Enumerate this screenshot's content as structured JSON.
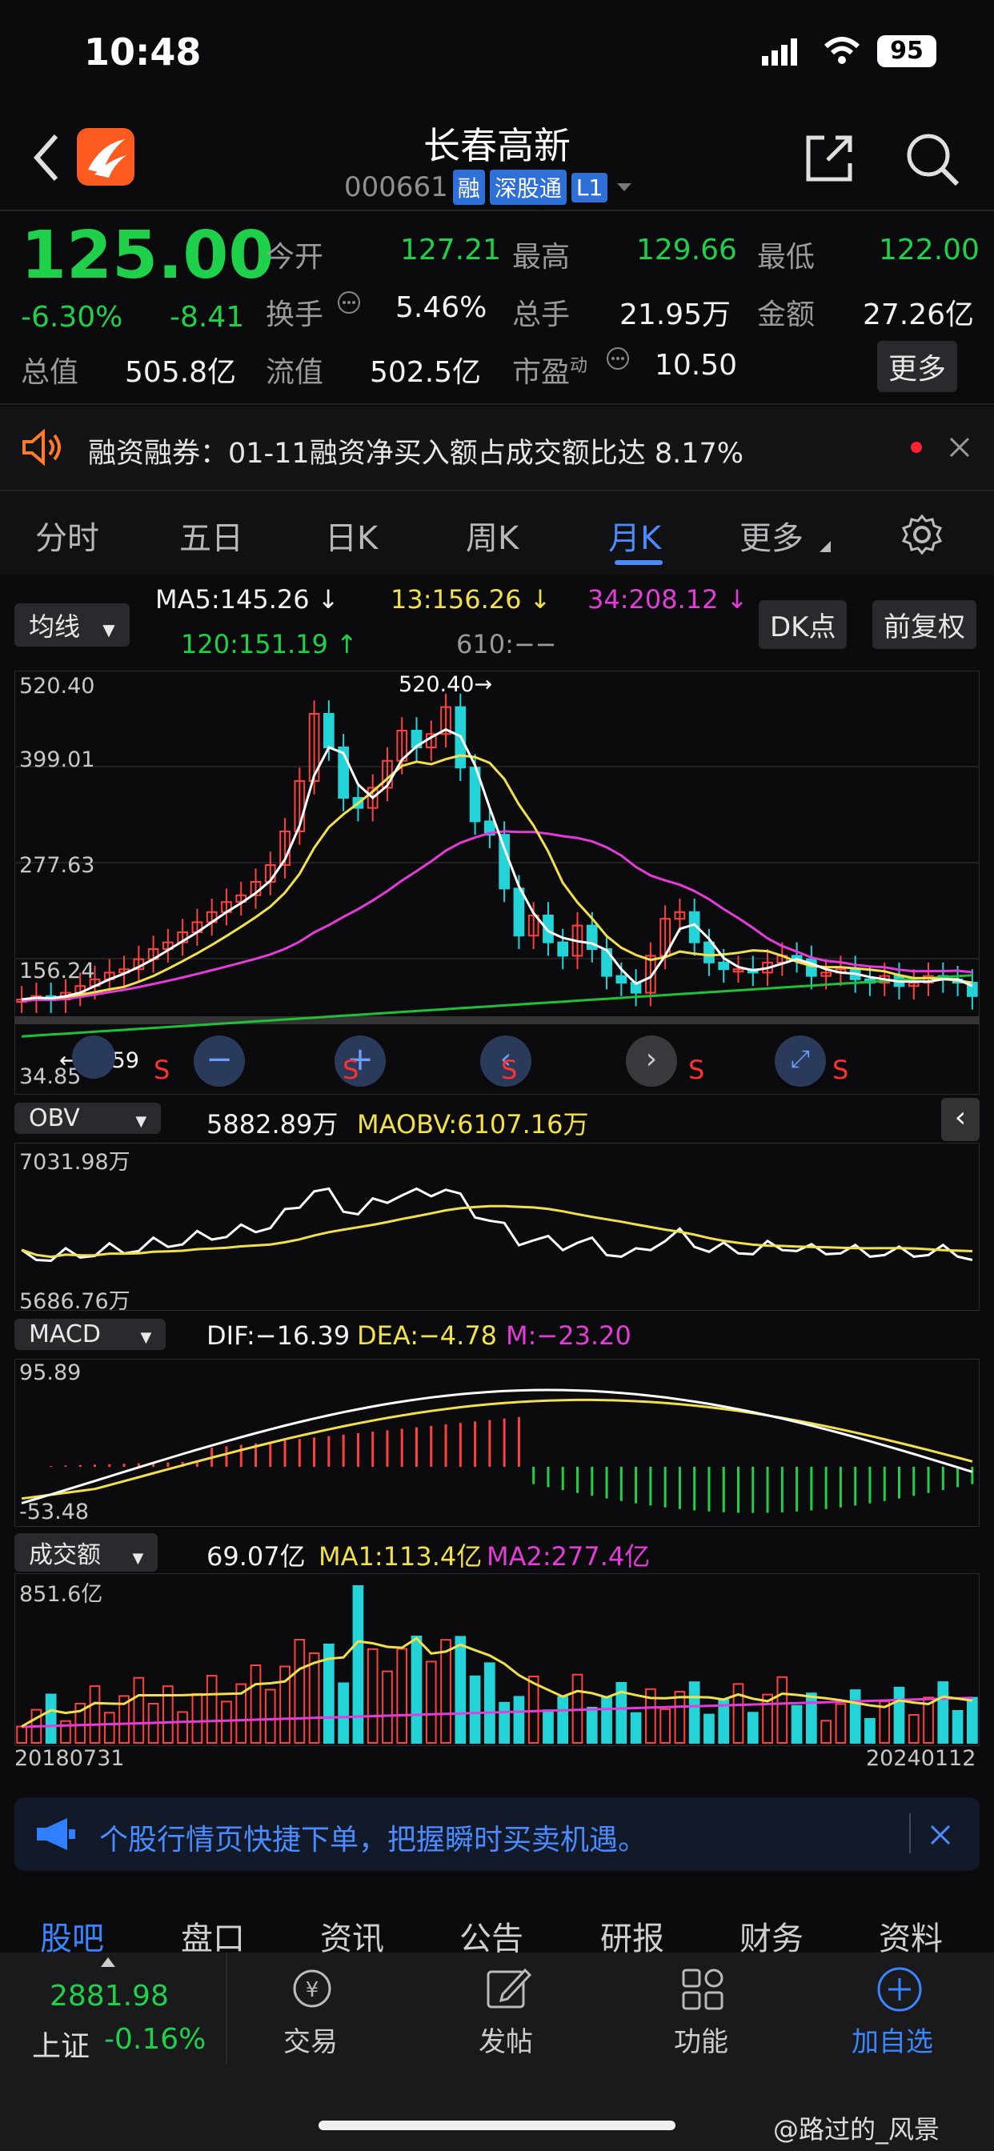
{
  "status_bar": {
    "time": "10:48",
    "battery": "95"
  },
  "header": {
    "title": "长春高新",
    "code": "000661",
    "tags": [
      "融",
      "深股通",
      "L1"
    ]
  },
  "quote": {
    "price": "125.00",
    "change_pct": "-6.30%",
    "change": "-8.41",
    "open_label": "今开",
    "open": "127.21",
    "high_label": "最高",
    "high": "129.66",
    "low_label": "最低",
    "low": "122.00",
    "turnover_label": "换手",
    "turnover": "5.46%",
    "volume_label": "总手",
    "volume": "21.95万",
    "amount_label": "金额",
    "amount": "27.26亿",
    "mktcap_label": "总值",
    "mktcap": "505.8亿",
    "float_label": "流值",
    "float": "502.5亿",
    "pe_label": "市盈",
    "pe_sup": "动",
    "pe": "10.50",
    "more_button": "更多"
  },
  "notice": {
    "text": "融资融券：01-11融资净买入额占成交额比达 8.17%"
  },
  "tabs": [
    "分时",
    "五日",
    "日K",
    "周K",
    "月K",
    "更多"
  ],
  "active_tab": "月K",
  "kline": {
    "ma_selector": "均线",
    "ma5": "MA5:145.26 ↓",
    "ma13": "13:156.26 ↓",
    "ma34": "34:208.12 ↓",
    "ma120": "120:151.19 ↑",
    "ma610": "610:−−",
    "dk_button": "DK点",
    "adjust_button": "前复权",
    "y_ticks": [
      "520.40",
      "399.01",
      "277.63",
      "156.24",
      "34.85"
    ],
    "max_label": "520.40→",
    "min_label": "←71.59"
  },
  "obv": {
    "selector": "OBV",
    "value": "5882.89万",
    "ma": "MAOBV:6107.16万",
    "top": "7031.98万",
    "bottom": "5686.76万"
  },
  "macd": {
    "selector": "MACD",
    "dif": "DIF:−16.39",
    "dea": "DEA:−4.78",
    "m": "M:−23.20",
    "top": "95.89",
    "bottom": "-53.48"
  },
  "vol": {
    "selector": "成交额",
    "value": "69.07亿",
    "ma1": "MA1:113.4亿",
    "ma2": "MA2:277.4亿",
    "top": "851.6亿",
    "start": "20180731",
    "end": "20240112"
  },
  "banner": {
    "text": "个股行情页快捷下单，把握瞬时买卖机遇。"
  },
  "section_tabs": [
    "股吧",
    "盘口",
    "资讯",
    "公告",
    "研报",
    "财务",
    "资料"
  ],
  "bottom": {
    "index_value": "2881.98",
    "index_name": "上证",
    "index_change": "-0.16%",
    "items": [
      "交易",
      "发帖",
      "功能",
      "加自选"
    ]
  },
  "watermark": "@路过的_风景",
  "colors": {
    "up": "#ff4040",
    "down": "#1fd04a",
    "candle_down": "#22d3d8",
    "ma5": "#ffffff",
    "ma13": "#f2e04a",
    "ma34": "#e43bd9",
    "ma120": "#1fc13a"
  }
}
